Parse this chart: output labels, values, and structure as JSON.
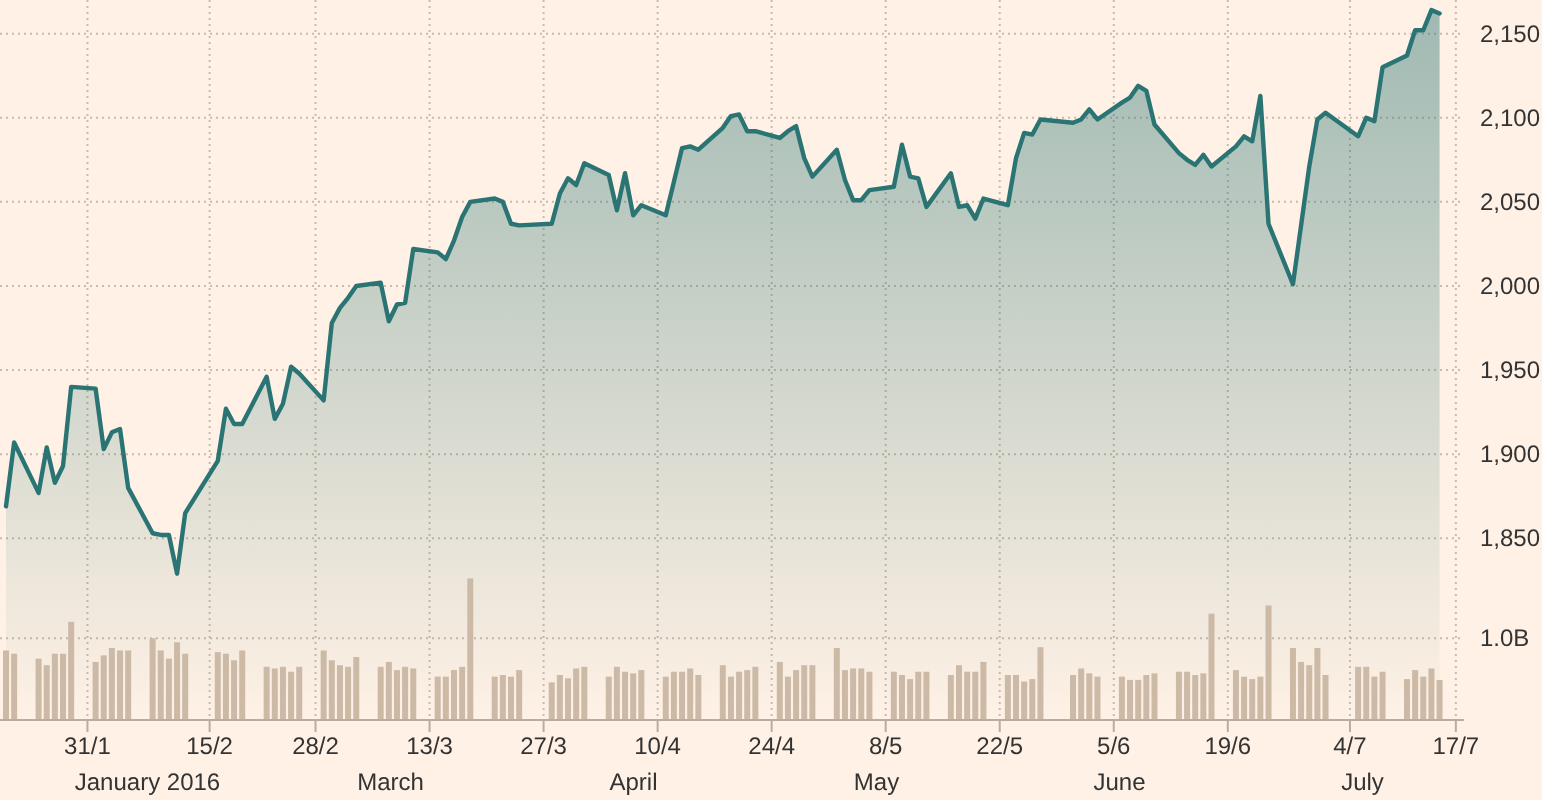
{
  "chart_data": {
    "type": "area",
    "x": [
      "2016-01-21",
      "2016-01-22",
      "2016-01-25",
      "2016-01-26",
      "2016-01-27",
      "2016-01-28",
      "2016-01-29",
      "2016-02-01",
      "2016-02-02",
      "2016-02-03",
      "2016-02-04",
      "2016-02-05",
      "2016-02-08",
      "2016-02-09",
      "2016-02-10",
      "2016-02-11",
      "2016-02-12",
      "2016-02-16",
      "2016-02-17",
      "2016-02-18",
      "2016-02-19",
      "2016-02-22",
      "2016-02-23",
      "2016-02-24",
      "2016-02-25",
      "2016-02-26",
      "2016-02-29",
      "2016-03-01",
      "2016-03-02",
      "2016-03-03",
      "2016-03-04",
      "2016-03-07",
      "2016-03-08",
      "2016-03-09",
      "2016-03-10",
      "2016-03-11",
      "2016-03-14",
      "2016-03-15",
      "2016-03-16",
      "2016-03-17",
      "2016-03-18",
      "2016-03-21",
      "2016-03-22",
      "2016-03-23",
      "2016-03-24",
      "2016-03-28",
      "2016-03-29",
      "2016-03-30",
      "2016-03-31",
      "2016-04-01",
      "2016-04-04",
      "2016-04-05",
      "2016-04-06",
      "2016-04-07",
      "2016-04-08",
      "2016-04-11",
      "2016-04-12",
      "2016-04-13",
      "2016-04-14",
      "2016-04-15",
      "2016-04-18",
      "2016-04-19",
      "2016-04-20",
      "2016-04-21",
      "2016-04-22",
      "2016-04-25",
      "2016-04-26",
      "2016-04-27",
      "2016-04-28",
      "2016-04-29",
      "2016-05-02",
      "2016-05-03",
      "2016-05-04",
      "2016-05-05",
      "2016-05-06",
      "2016-05-09",
      "2016-05-10",
      "2016-05-11",
      "2016-05-12",
      "2016-05-13",
      "2016-05-16",
      "2016-05-17",
      "2016-05-18",
      "2016-05-19",
      "2016-05-20",
      "2016-05-23",
      "2016-05-24",
      "2016-05-25",
      "2016-05-26",
      "2016-05-27",
      "2016-05-31",
      "2016-06-01",
      "2016-06-02",
      "2016-06-03",
      "2016-06-06",
      "2016-06-07",
      "2016-06-08",
      "2016-06-09",
      "2016-06-10",
      "2016-06-13",
      "2016-06-14",
      "2016-06-15",
      "2016-06-16",
      "2016-06-17",
      "2016-06-20",
      "2016-06-21",
      "2016-06-22",
      "2016-06-23",
      "2016-06-24",
      "2016-06-27",
      "2016-06-28",
      "2016-06-29",
      "2016-06-30",
      "2016-07-01",
      "2016-07-05",
      "2016-07-06",
      "2016-07-07",
      "2016-07-08",
      "2016-07-11",
      "2016-07-12",
      "2016-07-13",
      "2016-07-14",
      "2016-07-15"
    ],
    "series": [
      {
        "color": "#2a7574",
        "values": [
          1869,
          1907,
          1877,
          1904,
          1883,
          1893,
          1940,
          1939,
          1903,
          1913,
          1915,
          1880,
          1853,
          1852,
          1852,
          1829,
          1865,
          1896,
          1927,
          1918,
          1918,
          1946,
          1921,
          1930,
          1952,
          1948,
          1932,
          1978,
          1987,
          1993,
          2000,
          2002,
          1979,
          1989,
          1990,
          2022,
          2020,
          2016,
          2027,
          2041,
          2050,
          2052,
          2050,
          2037,
          2036,
          2037,
          2055,
          2064,
          2060,
          2073,
          2066,
          2045,
          2067,
          2042,
          2048,
          2042,
          2062,
          2082,
          2083,
          2081,
          2094,
          2101,
          2102,
          2092,
          2092,
          2088,
          2092,
          2095,
          2076,
          2065,
          2081,
          2063,
          2051,
          2051,
          2057,
          2059,
          2084,
          2065,
          2064,
          2047,
          2067,
          2047,
          2048,
          2040,
          2052,
          2048,
          2076,
          2091,
          2090,
          2099,
          2097,
          2099,
          2105,
          2099,
          2109,
          2112,
          2119,
          2116,
          2096,
          2079,
          2075,
          2072,
          2078,
          2071,
          2083,
          2089,
          2086,
          2113,
          2037,
          2001,
          2036,
          2071,
          2099,
          2103,
          2089,
          2100,
          2098,
          2130,
          2137,
          2152,
          2152,
          2164,
          2162
        ]
      },
      {
        "type": "bar",
        "axis": "y2",
        "color": "#ccbaa7",
        "values": [
          0.85,
          0.81,
          0.75,
          0.67,
          0.81,
          0.81,
          1.2,
          0.71,
          0.79,
          0.88,
          0.85,
          0.85,
          1.0,
          0.85,
          0.75,
          0.95,
          0.81,
          0.83,
          0.81,
          0.73,
          0.85,
          0.65,
          0.63,
          0.65,
          0.59,
          0.65,
          0.85,
          0.73,
          0.67,
          0.65,
          0.77,
          0.65,
          0.71,
          0.61,
          0.65,
          0.63,
          0.53,
          0.53,
          0.61,
          0.65,
          1.73,
          0.53,
          0.55,
          0.53,
          0.61,
          0.46,
          0.55,
          0.51,
          0.63,
          0.65,
          0.53,
          0.65,
          0.59,
          0.57,
          0.61,
          0.53,
          0.59,
          0.59,
          0.63,
          0.55,
          0.67,
          0.53,
          0.59,
          0.61,
          0.65,
          0.71,
          0.53,
          0.61,
          0.67,
          0.67,
          0.88,
          0.61,
          0.63,
          0.63,
          0.59,
          0.59,
          0.55,
          0.5,
          0.59,
          0.59,
          0.55,
          0.67,
          0.59,
          0.59,
          0.71,
          0.55,
          0.55,
          0.47,
          0.5,
          0.89,
          0.55,
          0.63,
          0.57,
          0.53,
          0.53,
          0.49,
          0.49,
          0.55,
          0.57,
          0.59,
          0.59,
          0.55,
          0.57,
          1.3,
          0.61,
          0.53,
          0.5,
          0.53,
          1.4,
          0.88,
          0.71,
          0.67,
          0.88,
          0.55,
          0.65,
          0.65,
          0.53,
          0.59,
          0.5,
          0.61,
          0.53,
          0.63,
          0.49
        ]
      }
    ],
    "xlim": [
      "2016-01-21",
      "2016-07-18"
    ],
    "xticks": [
      {
        "value": "2016-01-31",
        "label": "31/1"
      },
      {
        "value": "2016-02-15",
        "label": "15/2"
      },
      {
        "value": "2016-02-28",
        "label": "28/2"
      },
      {
        "value": "2016-03-13",
        "label": "13/3"
      },
      {
        "value": "2016-03-27",
        "label": "27/3"
      },
      {
        "value": "2016-04-10",
        "label": "10/4"
      },
      {
        "value": "2016-04-24",
        "label": "24/4"
      },
      {
        "value": "2016-05-08",
        "label": "8/5"
      },
      {
        "value": "2016-05-22",
        "label": "22/5"
      },
      {
        "value": "2016-06-05",
        "label": "5/6"
      },
      {
        "value": "2016-06-19",
        "label": "19/6"
      },
      {
        "value": "2016-07-04",
        "label": "4/7"
      },
      {
        "value": "2016-07-17",
        "label": "17/7"
      }
    ],
    "ylim": [
      1742,
      2170
    ],
    "yticks": [
      {
        "value": 1850,
        "label": "1,850"
      },
      {
        "value": 1900,
        "label": "1,900"
      },
      {
        "value": 1950,
        "label": "1,950"
      },
      {
        "value": 2000,
        "label": "2,000"
      },
      {
        "value": 2050,
        "label": "2,050"
      },
      {
        "value": 2100,
        "label": "2,100"
      },
      {
        "value": 2150,
        "label": "2,150"
      }
    ],
    "y2lim": [
      0,
      8.8
    ],
    "y2ticks": [
      {
        "value": 1,
        "label": "1.0B"
      }
    ],
    "grid": true,
    "annotations": [
      "January 2016",
      "March",
      "April",
      "May",
      "June",
      "July"
    ]
  }
}
